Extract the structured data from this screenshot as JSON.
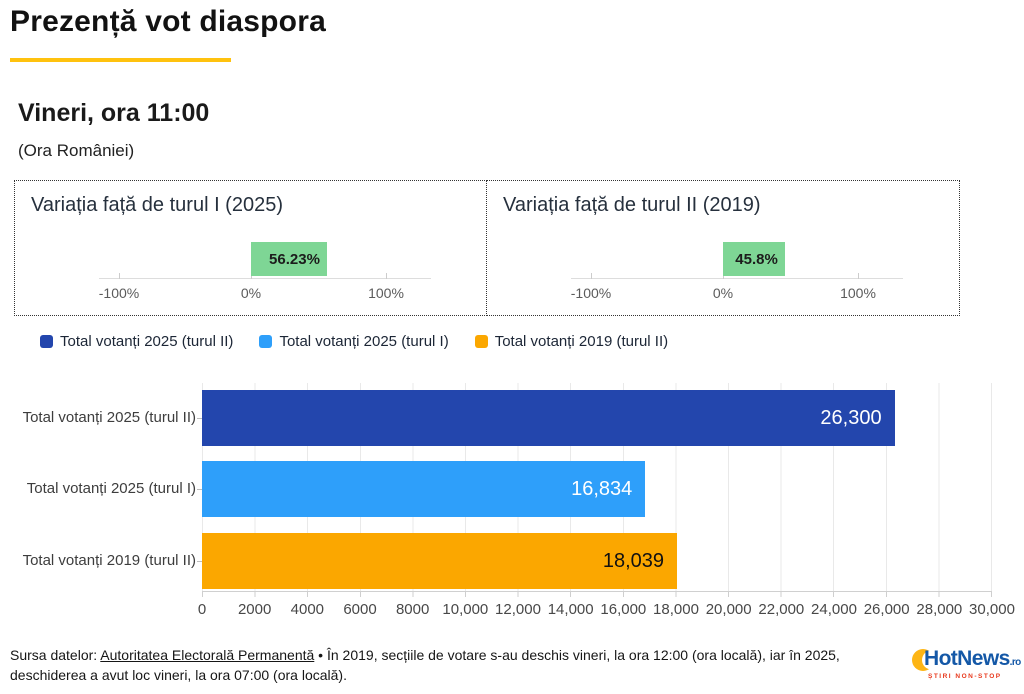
{
  "report": {
    "title": "Prezență vot diaspora",
    "time_label": "Vineri, ora 11:00",
    "timezone_note": "(Ora României)",
    "accent_color": "#ffc20e"
  },
  "legend": {
    "items": [
      {
        "label": "Total votanți 2025 (turul II)",
        "color": "#2346ad"
      },
      {
        "label": "Total votanți 2025 (turul I)",
        "color": "#2e9ffa"
      },
      {
        "label": "Total votanți 2019 (turul II)",
        "color": "#fba700"
      }
    ]
  },
  "chart_data": [
    {
      "type": "bar",
      "orientation": "horizontal",
      "title": "Variația față de turul I (2025)",
      "values": [
        56.23
      ],
      "value_labels": [
        "56.23%"
      ],
      "bar_color": "#7ed695",
      "xlim": [
        -100,
        100
      ],
      "x_tick_labels": [
        "-100%",
        "0%",
        "100%"
      ],
      "grid": false
    },
    {
      "type": "bar",
      "orientation": "horizontal",
      "title": "Variația față de turul II (2019)",
      "values": [
        45.8
      ],
      "value_labels": [
        "45.8%"
      ],
      "bar_color": "#7ed695",
      "xlim": [
        -100,
        100
      ],
      "x_tick_labels": [
        "-100%",
        "0%",
        "100%"
      ],
      "grid": false
    },
    {
      "type": "bar",
      "orientation": "horizontal",
      "categories": [
        "Total votanți 2025 (turul II)",
        "Total votanți 2025 (turul I)",
        "Total votanți 2019 (turul II)"
      ],
      "values": [
        26300,
        16834,
        18039
      ],
      "value_labels": [
        "26,300",
        "16,834",
        "18,039"
      ],
      "bar_colors": [
        "#2346ad",
        "#2e9ffa",
        "#fba700"
      ],
      "value_label_colors": [
        "#ffffff",
        "#ffffff",
        "#111111"
      ],
      "xlim": [
        0,
        30000
      ],
      "x_tick_labels": [
        "0",
        "2000",
        "4000",
        "6000",
        "8000",
        "10,000",
        "12,000",
        "14,000",
        "16,000",
        "18,000",
        "20,000",
        "22,000",
        "24,000",
        "26,000",
        "28,000",
        "30,000"
      ],
      "grid": true,
      "legend_position": "top"
    }
  ],
  "footer": {
    "source_prefix": "Sursa datelor: ",
    "source_link": "Autoritatea Electorală Permanentă",
    "note_line1": " • În 2019, secțiile de votare s-au deschis vineri, la ora 12:00 (ora locală), iar în 2025,",
    "note_line2": "deschiderea a avut loc vineri, la ora 07:00 (ora locală)."
  },
  "brand": {
    "name": "HotNews",
    "tld": ".ro",
    "tagline": "ȘTIRI NON-STOP",
    "blue": "#1458a7",
    "yellow": "#fdb515",
    "red": "#e8391d"
  }
}
